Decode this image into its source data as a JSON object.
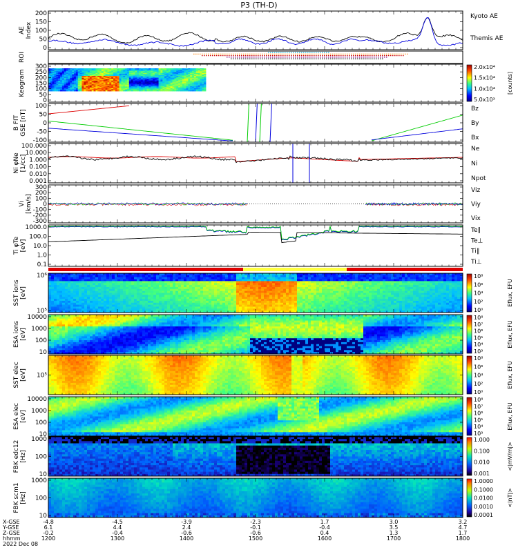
{
  "title": "P3 (TH-D)",
  "colors": {
    "red": "#dd0000",
    "green": "#00cc00",
    "blue": "#0000dd",
    "black": "#000000"
  },
  "chart_data": [
    {
      "type": "line",
      "panel": "ae",
      "ylabel": "AE Index",
      "yticks": [
        "200",
        "150",
        "100",
        "50",
        "0"
      ],
      "series": [
        {
          "name": "Kyoto AE",
          "color": "#0000dd"
        },
        {
          "name": "Themis AE",
          "color": "#000000"
        }
      ]
    },
    {
      "type": "heatmap",
      "panel": "roi",
      "ylabel": "ROI"
    },
    {
      "type": "heatmap",
      "panel": "keogram",
      "ylabel": "Keogram",
      "yticks": [
        "300",
        "250",
        "200",
        "150",
        "100",
        "50",
        "0"
      ],
      "colorbar": {
        "ticks": [
          "2.0x10⁴",
          "1.5x10⁴",
          "1.0x10⁴",
          "5.0x10³"
        ],
        "unit": "[counts]"
      }
    },
    {
      "type": "line",
      "panel": "bfield",
      "ylabel": "B FIT GSE [nT]",
      "yticks": [
        "100",
        "50",
        "0",
        "-50",
        "-100"
      ],
      "series": [
        {
          "name": "Bz",
          "color": "#dd0000"
        },
        {
          "name": "By",
          "color": "#00cc00"
        },
        {
          "name": "Bx",
          "color": "#0000dd"
        }
      ]
    },
    {
      "type": "line",
      "panel": "density",
      "ylabel": "Ni φNe [1/cc]",
      "yticks": [
        "100.000",
        "10.000",
        "1.000",
        "0.100",
        "0.010",
        "0.001"
      ],
      "series": [
        {
          "name": "Ne",
          "color": "#dd0000"
        },
        {
          "name": "Ni",
          "color": "#000000"
        },
        {
          "name": "Npot",
          "color": "#0000dd"
        }
      ]
    },
    {
      "type": "line",
      "panel": "velocity",
      "ylabel": "Vi [km/s]",
      "yticks": [
        "300",
        "200",
        "100",
        "0",
        "-100",
        "-200",
        "-300"
      ],
      "series": [
        {
          "name": "Viz",
          "color": "#dd0000"
        },
        {
          "name": "Viy",
          "color": "#00cc00"
        },
        {
          "name": "Vix",
          "color": "#0000dd"
        }
      ]
    },
    {
      "type": "line",
      "panel": "temperature",
      "ylabel": "Ti φTe [eV]",
      "yticks": [
        "1000.0",
        "100.0",
        "10.0",
        "1.0",
        "0.1"
      ],
      "series": [
        {
          "name": "Te∥",
          "color": "#000000"
        },
        {
          "name": "Te⊥",
          "color": "#dd0000"
        },
        {
          "name": "Ti∥",
          "color": "#00cc00"
        },
        {
          "name": "Ti⊥",
          "color": "#0000dd"
        }
      ]
    },
    {
      "type": "heatmap",
      "panel": "sst_ions",
      "ylabel": "SST ions [eV]",
      "yticks": [
        "10⁶",
        "10⁵"
      ],
      "colorbar": {
        "ticks": [
          "10⁸",
          "10⁶",
          "10⁴",
          "10²",
          "10⁰"
        ],
        "unit": "Eflux, EFU"
      }
    },
    {
      "type": "heatmap",
      "panel": "esa_ions",
      "ylabel": "ESA ions [eV]",
      "yticks": [
        "10000",
        "1000",
        "100",
        "10"
      ],
      "colorbar": {
        "ticks": [
          "10⁸",
          "10⁷",
          "10⁶",
          "10⁵",
          "10⁴",
          "10³"
        ],
        "unit": "Eflux, EFU"
      }
    },
    {
      "type": "heatmap",
      "panel": "sst_elec",
      "ylabel": "SST elec [eV]",
      "yticks": [
        "10⁵"
      ],
      "colorbar": {
        "ticks": [
          "10⁸",
          "10⁶",
          "10⁴",
          "10²",
          "10⁰"
        ],
        "unit": "Eflux, EFU"
      }
    },
    {
      "type": "heatmap",
      "panel": "esa_elec",
      "ylabel": "ESA elec [eV]",
      "yticks": [
        "10000",
        "1000",
        "100",
        "10"
      ],
      "colorbar": {
        "ticks": [
          "10⁸",
          "10⁷",
          "10⁶",
          "10⁵",
          "10⁴",
          "10³"
        ],
        "unit": "Eflux, EFU"
      }
    },
    {
      "type": "heatmap",
      "panel": "fbk_e",
      "ylabel": "FBK edc12 [Hz]",
      "yticks": [
        "1000",
        "100",
        "10"
      ],
      "colorbar": {
        "ticks": [
          "1.000",
          "0.100",
          "0.010",
          "0.001"
        ],
        "unit": "<|mV/m|>"
      }
    },
    {
      "type": "heatmap",
      "panel": "fbk_b",
      "ylabel": "FBK scm1 [Hz]",
      "yticks": [
        "1000",
        "100",
        "10"
      ],
      "colorbar": {
        "ticks": [
          "1.0000",
          "0.1000",
          "0.0100",
          "0.0010",
          "0.0001"
        ],
        "unit": "<|nT|>"
      }
    }
  ],
  "xaxis": {
    "row_labels": [
      "X-GSE",
      "Y-GSE",
      "Z-GSE",
      "hhmm",
      "2022 Dec 08"
    ],
    "columns": [
      {
        "x": "-4.8",
        "y": "6.1",
        "z": "-0.2",
        "t": "1200"
      },
      {
        "x": "-4.5",
        "y": "4.4",
        "z": "-0.4",
        "t": "1300"
      },
      {
        "x": "-3.9",
        "y": "2.4",
        "z": "-0.6",
        "t": "1400"
      },
      {
        "x": "-2.3",
        "y": "-0.1",
        "z": "-0.6",
        "t": "1500"
      },
      {
        "x": "1.7",
        "y": "-0.4",
        "z": "0.4",
        "t": "1600"
      },
      {
        "x": "3.0",
        "y": "3.5",
        "z": "1.3",
        "t": "1700"
      },
      {
        "x": "3.2",
        "y": "4.7",
        "z": "1.7",
        "t": "1800"
      }
    ]
  }
}
